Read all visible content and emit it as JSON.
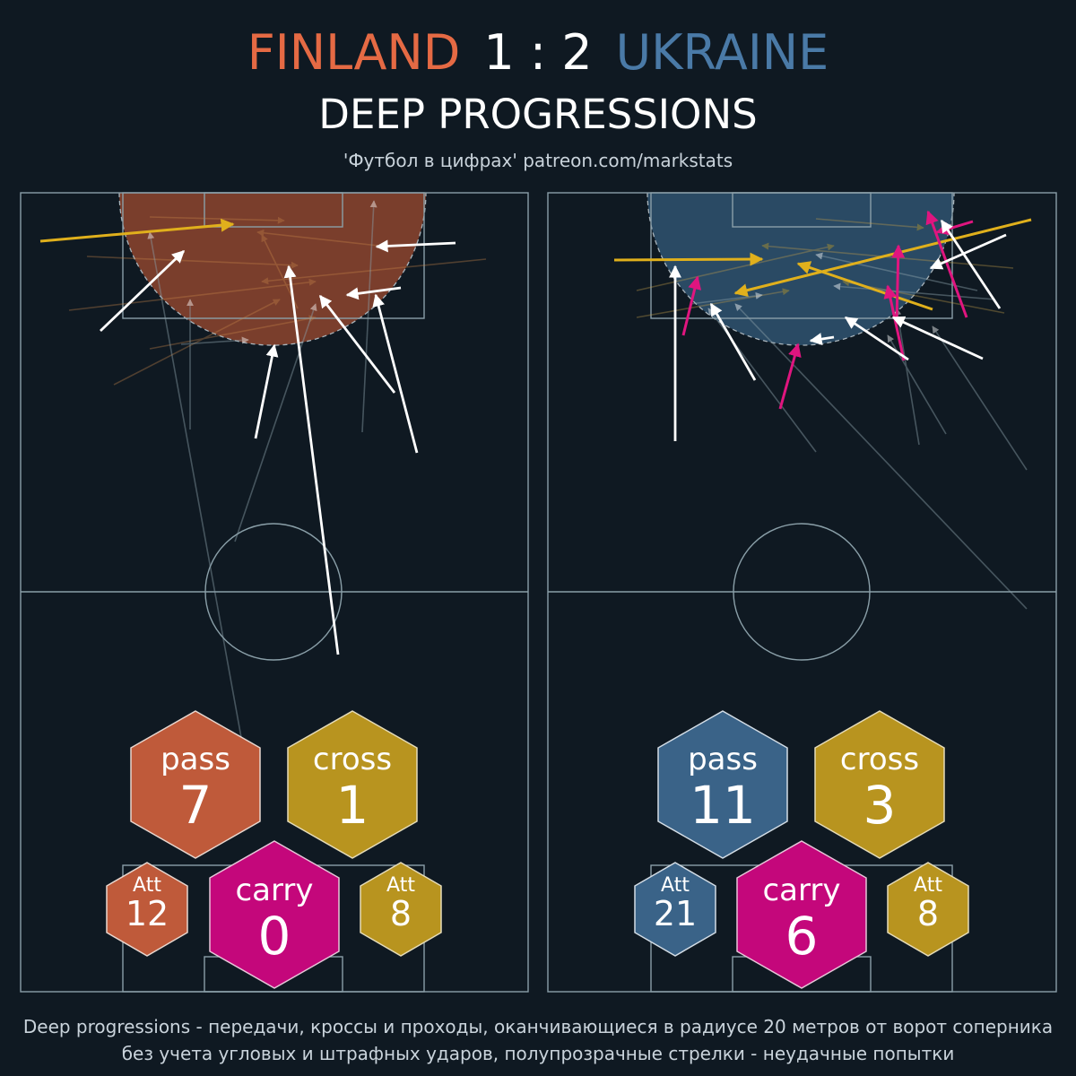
{
  "header": {
    "home_team": "FINLAND",
    "score": "1 : 2",
    "away_team": "UKRAINE",
    "subtitle": "DEEP PROGRESSIONS",
    "credit": "'Футбол в цифрах' patreon.com/markstats"
  },
  "colors": {
    "background": "#0f1922",
    "home": "#e56a44",
    "away": "#4a7aa7",
    "pass_home": "#bf5a3a",
    "pass_away": "#3a6388",
    "cross": "#b8941f",
    "carry": "#c4077b",
    "pitch_lines": "#8a9fa8"
  },
  "panels": [
    {
      "team": "FINLAND",
      "stats": {
        "pass": {
          "label": "pass",
          "value": "7"
        },
        "cross": {
          "label": "cross",
          "value": "1"
        },
        "carry": {
          "label": "carry",
          "value": "0"
        },
        "pass_att": {
          "label": "Att",
          "value": "12"
        },
        "cross_att": {
          "label": "Att",
          "value": "8"
        }
      }
    },
    {
      "team": "UKRAINE",
      "stats": {
        "pass": {
          "label": "pass",
          "value": "11"
        },
        "cross": {
          "label": "cross",
          "value": "3"
        },
        "carry": {
          "label": "carry",
          "value": "6"
        },
        "pass_att": {
          "label": "Att",
          "value": "21"
        },
        "cross_att": {
          "label": "Att",
          "value": "8"
        }
      }
    }
  ],
  "footer": {
    "line1": "Deep progressions - передачи, кроссы и проходы, оканчивающиеся в радиусе 20 метров от ворот соперника",
    "line2": "без учета угловых и штрафных ударов, полупрозрачные стрелки - неудачные попытки"
  }
}
